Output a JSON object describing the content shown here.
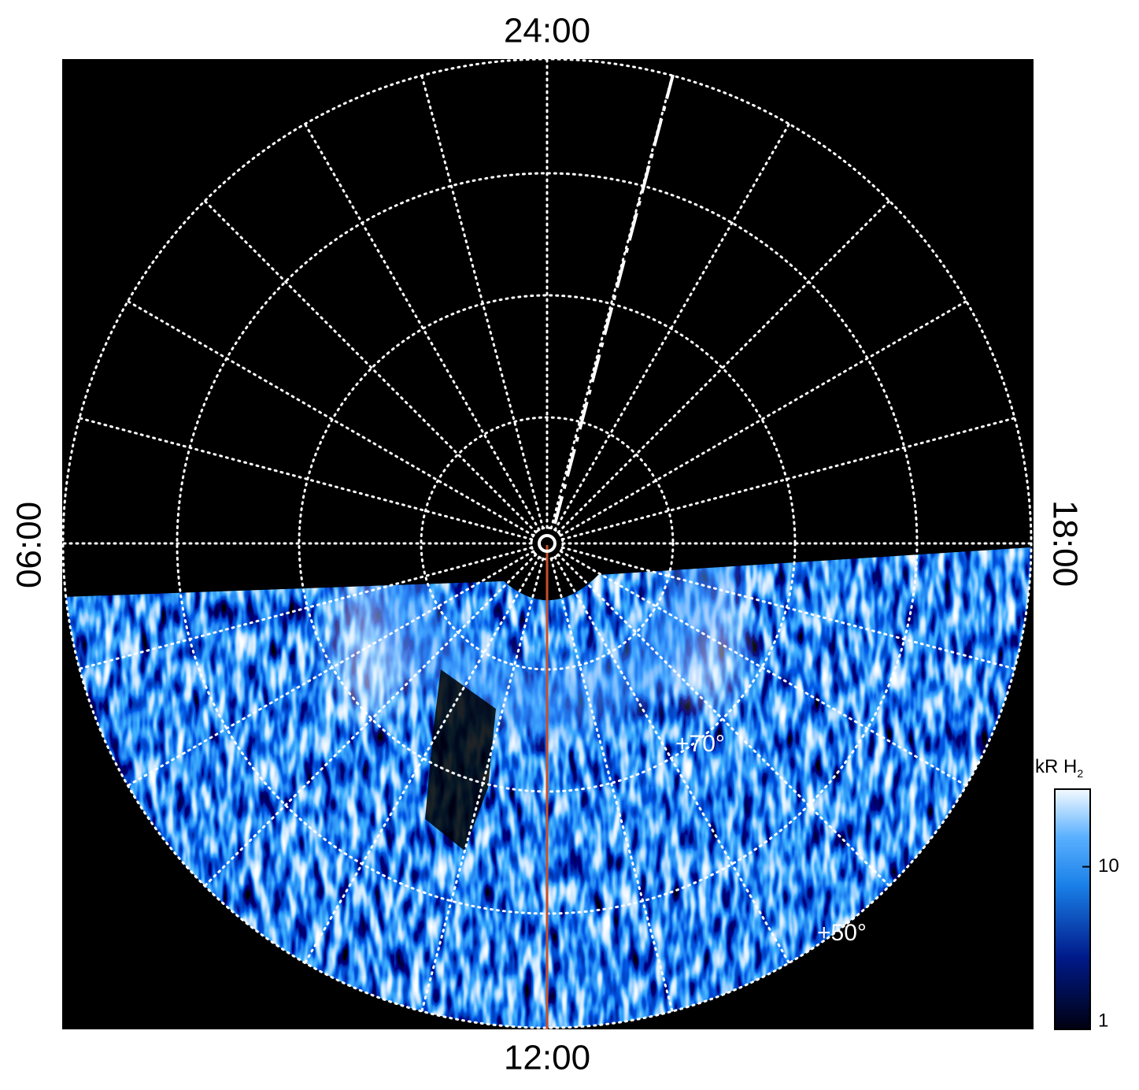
{
  "local_time_labels": {
    "top": "24:00",
    "bottom": "12:00",
    "left": "06:00",
    "right": "18:00"
  },
  "latitude_labels": [
    "+70°",
    "+50°"
  ],
  "colorbar": {
    "title": "kR H",
    "title_subscript": "2",
    "range": [
      1,
      30
    ],
    "log": true,
    "ticks": [
      1,
      10
    ]
  }
}
